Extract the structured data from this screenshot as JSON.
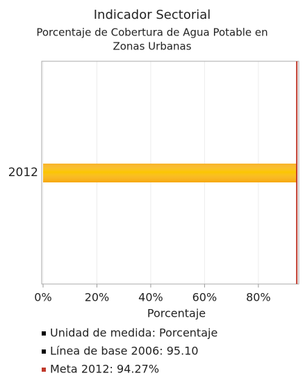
{
  "chart_data": {
    "type": "hbar",
    "title": "Indicador Sectorial",
    "subtitle": [
      "Porcentaje de Cobertura de Agua Potable en",
      "Zonas Urbanas"
    ],
    "categories": [
      "2012"
    ],
    "values": [
      94.3
    ],
    "color": "#f7a600",
    "xlabel": "Porcentaje",
    "xlim": [
      0,
      95
    ],
    "xticks": [
      {
        "value": 0,
        "label": "0%"
      },
      {
        "value": 20,
        "label": "20%"
      },
      {
        "value": 40,
        "label": "40%"
      },
      {
        "value": 60,
        "label": "60%"
      },
      {
        "value": 80,
        "label": "80%"
      }
    ],
    "grid": true,
    "target_line": {
      "value": 94.27,
      "color": "#c0392b"
    },
    "legend": [
      {
        "label": "Unidad de medida: Porcentaje",
        "color": "#000000"
      },
      {
        "label": "Línea de base 2006: 95.10",
        "color": "#000000"
      },
      {
        "label": "Meta 2012: 94.27%",
        "color": "#c0392b"
      }
    ]
  }
}
